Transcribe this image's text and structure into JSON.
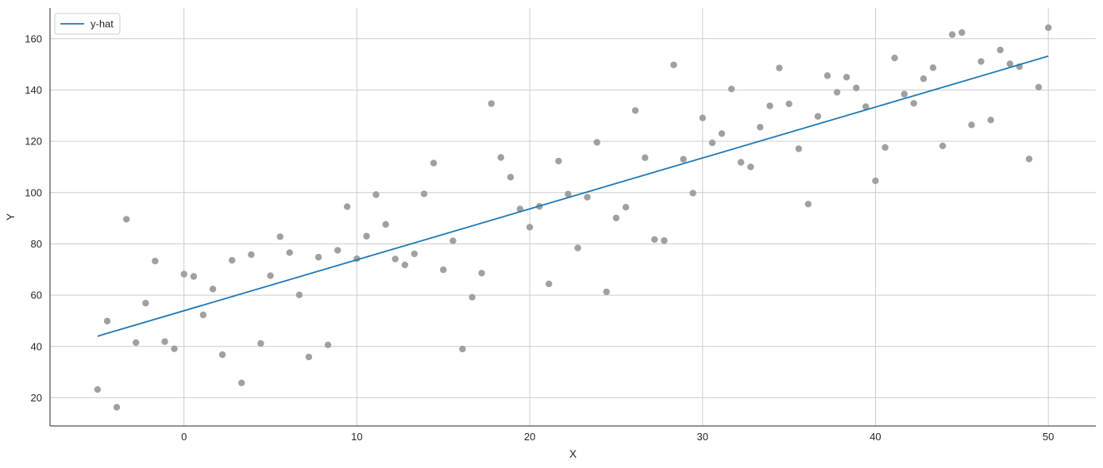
{
  "chart_data": {
    "type": "scatter",
    "xlabel": "X",
    "ylabel": "Y",
    "xlim": [
      -7.75,
      52.75
    ],
    "ylim": [
      9,
      172
    ],
    "xticks": [
      0,
      10,
      20,
      30,
      40,
      50
    ],
    "yticks": [
      20,
      40,
      60,
      80,
      100,
      120,
      140,
      160
    ],
    "grid": true,
    "legend": {
      "position": "top-left",
      "entries": [
        "y-hat"
      ]
    },
    "colors": {
      "points": "#a0a0a0",
      "line": "#1f77b4",
      "grid": "#cccccc",
      "axis": "#262626"
    },
    "series": [
      {
        "type": "scatter",
        "x": [
          -5.0,
          -4.44,
          -3.89,
          -3.33,
          -2.78,
          -2.22,
          -1.67,
          -1.11,
          -0.56,
          0.0,
          0.56,
          1.11,
          1.67,
          2.22,
          2.78,
          3.33,
          3.89,
          4.44,
          5.0,
          5.56,
          6.11,
          6.67,
          7.22,
          7.78,
          8.33,
          8.89,
          9.44,
          10.0,
          10.56,
          11.11,
          11.67,
          12.22,
          12.78,
          13.33,
          13.89,
          14.44,
          15.0,
          15.56,
          16.11,
          16.67,
          17.22,
          17.78,
          18.33,
          18.89,
          19.44,
          20.0,
          20.56,
          21.11,
          21.67,
          22.22,
          22.78,
          23.33,
          23.89,
          24.44,
          25.0,
          25.56,
          26.11,
          26.67,
          27.22,
          27.78,
          28.33,
          28.89,
          29.44,
          30.0,
          30.56,
          31.11,
          31.67,
          32.22,
          32.78,
          33.33,
          33.89,
          34.44,
          35.0,
          35.56,
          36.11,
          36.67,
          37.22,
          37.78,
          38.33,
          38.89,
          39.44,
          40.0,
          40.56,
          41.11,
          41.67,
          42.22,
          42.78,
          43.33,
          43.89,
          44.44,
          45.0,
          45.56,
          46.11,
          46.67,
          47.22,
          47.78,
          48.33,
          48.89,
          49.44,
          50.0
        ],
        "y": [
          23.2,
          49.9,
          16.3,
          89.6,
          41.5,
          56.9,
          73.3,
          41.9,
          39.1,
          68.2,
          67.3,
          52.3,
          62.4,
          36.8,
          73.6,
          25.8,
          75.8,
          41.2,
          67.6,
          82.8,
          76.6,
          60.1,
          35.9,
          74.8,
          40.6,
          77.5,
          94.5,
          74.2,
          83.0,
          99.2,
          87.6,
          74.1,
          71.8,
          76.1,
          99.5,
          111.5,
          69.9,
          81.2,
          39.0,
          59.2,
          68.6,
          134.7,
          113.7,
          106.0,
          93.6,
          86.5,
          94.6,
          64.4,
          112.3,
          99.4,
          78.4,
          98.2,
          119.6,
          61.3,
          90.1,
          94.3,
          132.0,
          113.6,
          81.7,
          81.3,
          149.8,
          113.0,
          99.8,
          129.1,
          119.4,
          123.0,
          140.4,
          111.8,
          110.0,
          125.5,
          133.8,
          148.6,
          134.6,
          117.1,
          95.5,
          129.7,
          145.6,
          139.1,
          145.0,
          140.8,
          133.5,
          104.6,
          117.6,
          152.5,
          138.4,
          134.8,
          144.4,
          148.7,
          118.2,
          161.6,
          162.4,
          126.4,
          151.1,
          128.3,
          155.6,
          150.2,
          149.1,
          113.1,
          141.1,
          164.3
        ]
      },
      {
        "name": "y-hat",
        "type": "line",
        "x": [
          -5,
          50
        ],
        "y": [
          44.0,
          153.2
        ]
      }
    ]
  }
}
